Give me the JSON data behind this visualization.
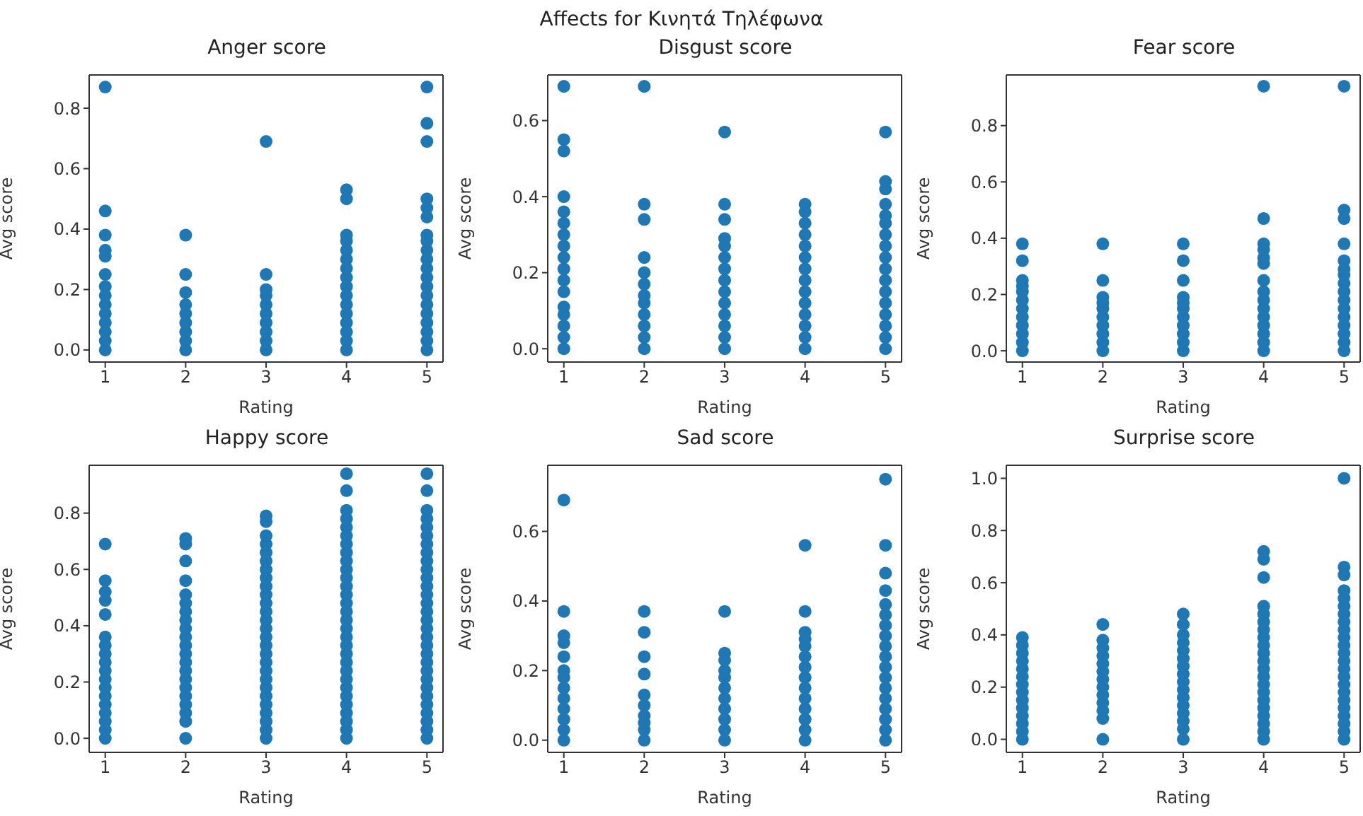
{
  "chart_data": [
    {
      "type": "scatter",
      "title": "Anger score",
      "xlabel": "Rating",
      "ylabel": "Avg score",
      "annotations": [
        "Affects for Κινητά Τηλέφωνα"
      ],
      "marker": "circle",
      "xlim": [
        0.8,
        5.2
      ],
      "xticks": [
        1,
        2,
        3,
        4,
        5
      ],
      "ylim": [
        -0.04,
        0.91
      ],
      "yticks": [
        {
          "value": 0,
          "label": "0.0"
        },
        {
          "value": 0.2,
          "label": "0.2"
        },
        {
          "value": 0.4,
          "label": "0.4"
        },
        {
          "value": 0.6,
          "label": "0.6"
        },
        {
          "value": 0.8,
          "label": "0.8"
        }
      ],
      "series": [
        {
          "color": "#1f77b4",
          "x": [
            1,
            1,
            1,
            1,
            1,
            1,
            1,
            1,
            1,
            1,
            1,
            1,
            1,
            1
          ],
          "values": [
            0,
            0.03,
            0.06,
            0.09,
            0.12,
            0.15,
            0.18,
            0.21,
            0.25,
            0.31,
            0.33,
            0.38,
            0.46,
            0.87
          ]
        },
        {
          "color": "#1f77b4",
          "x": [
            2,
            2,
            2,
            2,
            2,
            2,
            2,
            2,
            2
          ],
          "values": [
            0,
            0.03,
            0.06,
            0.09,
            0.12,
            0.15,
            0.19,
            0.25,
            0.38
          ]
        },
        {
          "color": "#1f77b4",
          "x": [
            3,
            3,
            3,
            3,
            3,
            3,
            3,
            3,
            3,
            3
          ],
          "values": [
            0,
            0.03,
            0.06,
            0.09,
            0.12,
            0.15,
            0.18,
            0.2,
            0.25,
            0.69
          ]
        },
        {
          "color": "#1f77b4",
          "x": [
            4,
            4,
            4,
            4,
            4,
            4,
            4,
            4,
            4,
            4,
            4,
            4,
            4,
            4,
            4,
            4
          ],
          "values": [
            0,
            0.03,
            0.06,
            0.09,
            0.12,
            0.15,
            0.18,
            0.21,
            0.24,
            0.27,
            0.3,
            0.33,
            0.36,
            0.38,
            0.5,
            0.53
          ]
        },
        {
          "color": "#1f77b4",
          "x": [
            5,
            5,
            5,
            5,
            5,
            5,
            5,
            5,
            5,
            5,
            5,
            5,
            5,
            5,
            5,
            5,
            5,
            5,
            5,
            5
          ],
          "values": [
            0,
            0.03,
            0.06,
            0.09,
            0.12,
            0.15,
            0.18,
            0.21,
            0.24,
            0.27,
            0.3,
            0.33,
            0.36,
            0.38,
            0.44,
            0.47,
            0.5,
            0.69,
            0.75,
            0.87
          ]
        }
      ]
    },
    {
      "type": "scatter",
      "title": "Disgust score",
      "xlabel": "Rating",
      "ylabel": "Avg score",
      "marker": "circle",
      "xlim": [
        0.8,
        5.2
      ],
      "xticks": [
        1,
        2,
        3,
        4,
        5
      ],
      "ylim": [
        -0.035,
        0.72
      ],
      "yticks": [
        {
          "value": 0,
          "label": "0.0"
        },
        {
          "value": 0.2,
          "label": "0.2"
        },
        {
          "value": 0.4,
          "label": "0.4"
        },
        {
          "value": 0.6,
          "label": "0.6"
        }
      ],
      "series": [
        {
          "color": "#1f77b4",
          "x": [
            1,
            1,
            1,
            1,
            1,
            1,
            1,
            1,
            1,
            1,
            1,
            1,
            1,
            1,
            1,
            1,
            1
          ],
          "values": [
            0,
            0.03,
            0.06,
            0.09,
            0.11,
            0.15,
            0.18,
            0.21,
            0.24,
            0.27,
            0.3,
            0.33,
            0.36,
            0.4,
            0.52,
            0.55,
            0.69
          ]
        },
        {
          "color": "#1f77b4",
          "x": [
            2,
            2,
            2,
            2,
            2,
            2,
            2,
            2,
            2,
            2,
            2,
            2
          ],
          "values": [
            0,
            0.03,
            0.06,
            0.09,
            0.12,
            0.14,
            0.17,
            0.2,
            0.24,
            0.34,
            0.38,
            0.69
          ]
        },
        {
          "color": "#1f77b4",
          "x": [
            3,
            3,
            3,
            3,
            3,
            3,
            3,
            3,
            3,
            3,
            3,
            3,
            3,
            3
          ],
          "values": [
            0,
            0.03,
            0.06,
            0.09,
            0.12,
            0.15,
            0.18,
            0.21,
            0.24,
            0.27,
            0.29,
            0.34,
            0.38,
            0.57
          ]
        },
        {
          "color": "#1f77b4",
          "x": [
            4,
            4,
            4,
            4,
            4,
            4,
            4,
            4,
            4,
            4,
            4,
            4,
            4,
            4
          ],
          "values": [
            0,
            0.03,
            0.06,
            0.09,
            0.12,
            0.15,
            0.18,
            0.21,
            0.24,
            0.27,
            0.3,
            0.33,
            0.36,
            0.38
          ]
        },
        {
          "color": "#1f77b4",
          "x": [
            5,
            5,
            5,
            5,
            5,
            5,
            5,
            5,
            5,
            5,
            5,
            5,
            5,
            5,
            5,
            5,
            5
          ],
          "values": [
            0,
            0.03,
            0.06,
            0.09,
            0.12,
            0.15,
            0.18,
            0.21,
            0.24,
            0.27,
            0.3,
            0.33,
            0.35,
            0.38,
            0.42,
            0.44,
            0.57
          ]
        }
      ]
    },
    {
      "type": "scatter",
      "title": "Fear score",
      "xlabel": "Rating",
      "ylabel": "Avg score",
      "marker": "circle",
      "xlim": [
        0.8,
        5.2
      ],
      "xticks": [
        1,
        2,
        3,
        4,
        5
      ],
      "ylim": [
        -0.04,
        0.98
      ],
      "yticks": [
        {
          "value": 0,
          "label": "0.0"
        },
        {
          "value": 0.2,
          "label": "0.2"
        },
        {
          "value": 0.4,
          "label": "0.4"
        },
        {
          "value": 0.6,
          "label": "0.6"
        },
        {
          "value": 0.8,
          "label": "0.8"
        }
      ],
      "series": [
        {
          "color": "#1f77b4",
          "x": [
            1,
            1,
            1,
            1,
            1,
            1,
            1,
            1,
            1,
            1,
            1,
            1
          ],
          "values": [
            0,
            0.03,
            0.06,
            0.09,
            0.12,
            0.15,
            0.18,
            0.21,
            0.23,
            0.25,
            0.32,
            0.38
          ]
        },
        {
          "color": "#1f77b4",
          "x": [
            2,
            2,
            2,
            2,
            2,
            2,
            2,
            2,
            2,
            2
          ],
          "values": [
            0,
            0.03,
            0.06,
            0.09,
            0.12,
            0.15,
            0.17,
            0.19,
            0.25,
            0.38
          ]
        },
        {
          "color": "#1f77b4",
          "x": [
            3,
            3,
            3,
            3,
            3,
            3,
            3,
            3,
            3,
            3,
            3
          ],
          "values": [
            0,
            0.03,
            0.06,
            0.09,
            0.12,
            0.15,
            0.17,
            0.19,
            0.25,
            0.32,
            0.38
          ]
        },
        {
          "color": "#1f77b4",
          "x": [
            4,
            4,
            4,
            4,
            4,
            4,
            4,
            4,
            4,
            4,
            4,
            4,
            4,
            4,
            4
          ],
          "values": [
            0,
            0.03,
            0.06,
            0.09,
            0.12,
            0.15,
            0.18,
            0.21,
            0.25,
            0.31,
            0.33,
            0.36,
            0.38,
            0.47,
            0.94
          ]
        },
        {
          "color": "#1f77b4",
          "x": [
            5,
            5,
            5,
            5,
            5,
            5,
            5,
            5,
            5,
            5,
            5,
            5,
            5,
            5,
            5,
            5
          ],
          "values": [
            0,
            0.03,
            0.06,
            0.09,
            0.12,
            0.15,
            0.18,
            0.21,
            0.24,
            0.27,
            0.29,
            0.32,
            0.38,
            0.47,
            0.5,
            0.94
          ]
        }
      ]
    },
    {
      "type": "scatter",
      "title": "Happy score",
      "xlabel": "Rating",
      "ylabel": "Avg score",
      "marker": "circle",
      "xlim": [
        0.8,
        5.2
      ],
      "xticks": [
        1,
        2,
        3,
        4,
        5
      ],
      "ylim": [
        -0.05,
        0.97
      ],
      "yticks": [
        {
          "value": 0,
          "label": "0.0"
        },
        {
          "value": 0.2,
          "label": "0.2"
        },
        {
          "value": 0.4,
          "label": "0.4"
        },
        {
          "value": 0.6,
          "label": "0.6"
        },
        {
          "value": 0.8,
          "label": "0.8"
        }
      ],
      "series": [
        {
          "color": "#1f77b4",
          "x": [
            1,
            1,
            1,
            1,
            1,
            1,
            1,
            1,
            1,
            1,
            1,
            1,
            1,
            1,
            1,
            1,
            1,
            1
          ],
          "values": [
            0,
            0.03,
            0.06,
            0.09,
            0.12,
            0.15,
            0.18,
            0.21,
            0.24,
            0.27,
            0.3,
            0.33,
            0.36,
            0.44,
            0.49,
            0.52,
            0.56,
            0.69
          ]
        },
        {
          "color": "#1f77b4",
          "x": [
            2,
            2,
            2,
            2,
            2,
            2,
            2,
            2,
            2,
            2,
            2,
            2,
            2,
            2,
            2,
            2,
            2,
            2,
            2,
            2,
            2
          ],
          "values": [
            0,
            0.06,
            0.09,
            0.12,
            0.15,
            0.18,
            0.21,
            0.24,
            0.27,
            0.3,
            0.33,
            0.36,
            0.39,
            0.42,
            0.45,
            0.48,
            0.51,
            0.56,
            0.63,
            0.69,
            0.71
          ]
        },
        {
          "color": "#1f77b4",
          "x": [
            3,
            3,
            3,
            3,
            3,
            3,
            3,
            3,
            3,
            3,
            3,
            3,
            3,
            3,
            3,
            3,
            3,
            3,
            3,
            3,
            3,
            3,
            3,
            3,
            3,
            3,
            3
          ],
          "values": [
            0,
            0.03,
            0.06,
            0.09,
            0.12,
            0.15,
            0.18,
            0.21,
            0.24,
            0.27,
            0.3,
            0.33,
            0.36,
            0.39,
            0.42,
            0.45,
            0.48,
            0.51,
            0.54,
            0.57,
            0.6,
            0.63,
            0.66,
            0.69,
            0.72,
            0.77,
            0.79
          ]
        },
        {
          "color": "#1f77b4",
          "x": [
            4,
            4,
            4,
            4,
            4,
            4,
            4,
            4,
            4,
            4,
            4,
            4,
            4,
            4,
            4,
            4,
            4,
            4,
            4,
            4,
            4,
            4,
            4,
            4,
            4,
            4,
            4,
            4,
            4,
            4
          ],
          "values": [
            0,
            0.03,
            0.06,
            0.09,
            0.12,
            0.15,
            0.18,
            0.21,
            0.24,
            0.27,
            0.3,
            0.33,
            0.36,
            0.39,
            0.42,
            0.45,
            0.48,
            0.51,
            0.54,
            0.57,
            0.6,
            0.63,
            0.66,
            0.69,
            0.72,
            0.75,
            0.78,
            0.81,
            0.88,
            0.94
          ]
        },
        {
          "color": "#1f77b4",
          "x": [
            5,
            5,
            5,
            5,
            5,
            5,
            5,
            5,
            5,
            5,
            5,
            5,
            5,
            5,
            5,
            5,
            5,
            5,
            5,
            5,
            5,
            5,
            5,
            5,
            5,
            5,
            5,
            5,
            5,
            5
          ],
          "values": [
            0,
            0.03,
            0.06,
            0.09,
            0.12,
            0.15,
            0.18,
            0.21,
            0.24,
            0.27,
            0.3,
            0.33,
            0.36,
            0.39,
            0.42,
            0.45,
            0.48,
            0.51,
            0.54,
            0.57,
            0.6,
            0.63,
            0.66,
            0.69,
            0.72,
            0.75,
            0.78,
            0.81,
            0.88,
            0.94
          ]
        }
      ]
    },
    {
      "type": "scatter",
      "title": "Sad score",
      "xlabel": "Rating",
      "ylabel": "Avg score",
      "marker": "circle",
      "xlim": [
        0.8,
        5.2
      ],
      "xticks": [
        1,
        2,
        3,
        4,
        5
      ],
      "ylim": [
        -0.035,
        0.79
      ],
      "yticks": [
        {
          "value": 0,
          "label": "0.0"
        },
        {
          "value": 0.2,
          "label": "0.2"
        },
        {
          "value": 0.4,
          "label": "0.4"
        },
        {
          "value": 0.6,
          "label": "0.6"
        }
      ],
      "series": [
        {
          "color": "#1f77b4",
          "x": [
            1,
            1,
            1,
            1,
            1,
            1,
            1,
            1,
            1,
            1,
            1,
            1,
            1
          ],
          "values": [
            0,
            0.03,
            0.06,
            0.09,
            0.12,
            0.15,
            0.18,
            0.2,
            0.24,
            0.28,
            0.3,
            0.37,
            0.69
          ]
        },
        {
          "color": "#1f77b4",
          "x": [
            2,
            2,
            2,
            2,
            2,
            2,
            2,
            2,
            2,
            2
          ],
          "values": [
            0,
            0.03,
            0.05,
            0.07,
            0.1,
            0.13,
            0.19,
            0.24,
            0.31,
            0.37
          ]
        },
        {
          "color": "#1f77b4",
          "x": [
            3,
            3,
            3,
            3,
            3,
            3,
            3,
            3,
            3,
            3,
            3
          ],
          "values": [
            0,
            0.03,
            0.06,
            0.09,
            0.12,
            0.15,
            0.18,
            0.2,
            0.23,
            0.25,
            0.37
          ]
        },
        {
          "color": "#1f77b4",
          "x": [
            4,
            4,
            4,
            4,
            4,
            4,
            4,
            4,
            4,
            4,
            4,
            4,
            4
          ],
          "values": [
            0,
            0.03,
            0.06,
            0.09,
            0.12,
            0.15,
            0.18,
            0.21,
            0.24,
            0.27,
            0.29,
            0.31,
            0.37
          ]
        },
        {
          "color": "#1f77b4",
          "x": [
            4
          ],
          "values": [
            0.56
          ]
        },
        {
          "color": "#1f77b4",
          "x": [
            5,
            5,
            5,
            5,
            5,
            5,
            5,
            5,
            5,
            5,
            5,
            5,
            5,
            5,
            5,
            5,
            5,
            5
          ],
          "values": [
            0,
            0.03,
            0.06,
            0.09,
            0.12,
            0.15,
            0.18,
            0.21,
            0.24,
            0.27,
            0.3,
            0.33,
            0.36,
            0.39,
            0.43,
            0.48,
            0.56,
            0.75
          ]
        }
      ]
    },
    {
      "type": "scatter",
      "title": "Surprise score",
      "xlabel": "Rating",
      "ylabel": "Avg score",
      "marker": "circle",
      "xlim": [
        0.8,
        5.2
      ],
      "xticks": [
        1,
        2,
        3,
        4,
        5
      ],
      "ylim": [
        -0.05,
        1.05
      ],
      "yticks": [
        {
          "value": 0,
          "label": "0.0"
        },
        {
          "value": 0.2,
          "label": "0.2"
        },
        {
          "value": 0.4,
          "label": "0.4"
        },
        {
          "value": 0.6,
          "label": "0.6"
        },
        {
          "value": 0.8,
          "label": "0.8"
        },
        {
          "value": 1,
          "label": "1.0"
        }
      ],
      "series": [
        {
          "color": "#1f77b4",
          "x": [
            1,
            1,
            1,
            1,
            1,
            1,
            1,
            1,
            1,
            1,
            1,
            1,
            1,
            1
          ],
          "values": [
            0,
            0.03,
            0.06,
            0.09,
            0.12,
            0.15,
            0.18,
            0.21,
            0.24,
            0.27,
            0.3,
            0.33,
            0.36,
            0.39
          ]
        },
        {
          "color": "#1f77b4",
          "x": [
            2,
            2,
            2,
            2,
            2,
            2,
            2,
            2,
            2,
            2,
            2,
            2,
            2
          ],
          "values": [
            0,
            0.08,
            0.11,
            0.14,
            0.17,
            0.2,
            0.23,
            0.26,
            0.29,
            0.32,
            0.35,
            0.38,
            0.44
          ]
        },
        {
          "color": "#1f77b4",
          "x": [
            3,
            3,
            3,
            3,
            3,
            3,
            3,
            3,
            3,
            3,
            3,
            3,
            3,
            3,
            3,
            3
          ],
          "values": [
            0,
            0.04,
            0.07,
            0.1,
            0.13,
            0.16,
            0.19,
            0.22,
            0.25,
            0.28,
            0.31,
            0.34,
            0.37,
            0.4,
            0.44,
            0.48
          ]
        },
        {
          "color": "#1f77b4",
          "x": [
            4,
            4,
            4,
            4,
            4,
            4,
            4,
            4,
            4,
            4,
            4,
            4,
            4,
            4,
            4,
            4,
            4,
            4,
            4,
            4,
            4
          ],
          "values": [
            0,
            0.03,
            0.06,
            0.09,
            0.12,
            0.15,
            0.18,
            0.21,
            0.24,
            0.27,
            0.3,
            0.33,
            0.36,
            0.39,
            0.42,
            0.45,
            0.48,
            0.51,
            0.62,
            0.69,
            0.72
          ]
        },
        {
          "color": "#1f77b4",
          "x": [
            5,
            5,
            5,
            5,
            5,
            5,
            5,
            5,
            5,
            5,
            5,
            5,
            5,
            5,
            5,
            5,
            5,
            5,
            5,
            5,
            5,
            5,
            5
          ],
          "values": [
            0,
            0.03,
            0.06,
            0.09,
            0.12,
            0.15,
            0.18,
            0.21,
            0.24,
            0.27,
            0.3,
            0.33,
            0.36,
            0.39,
            0.42,
            0.45,
            0.48,
            0.51,
            0.54,
            0.57,
            0.63,
            0.66,
            1.0
          ]
        }
      ]
    }
  ]
}
